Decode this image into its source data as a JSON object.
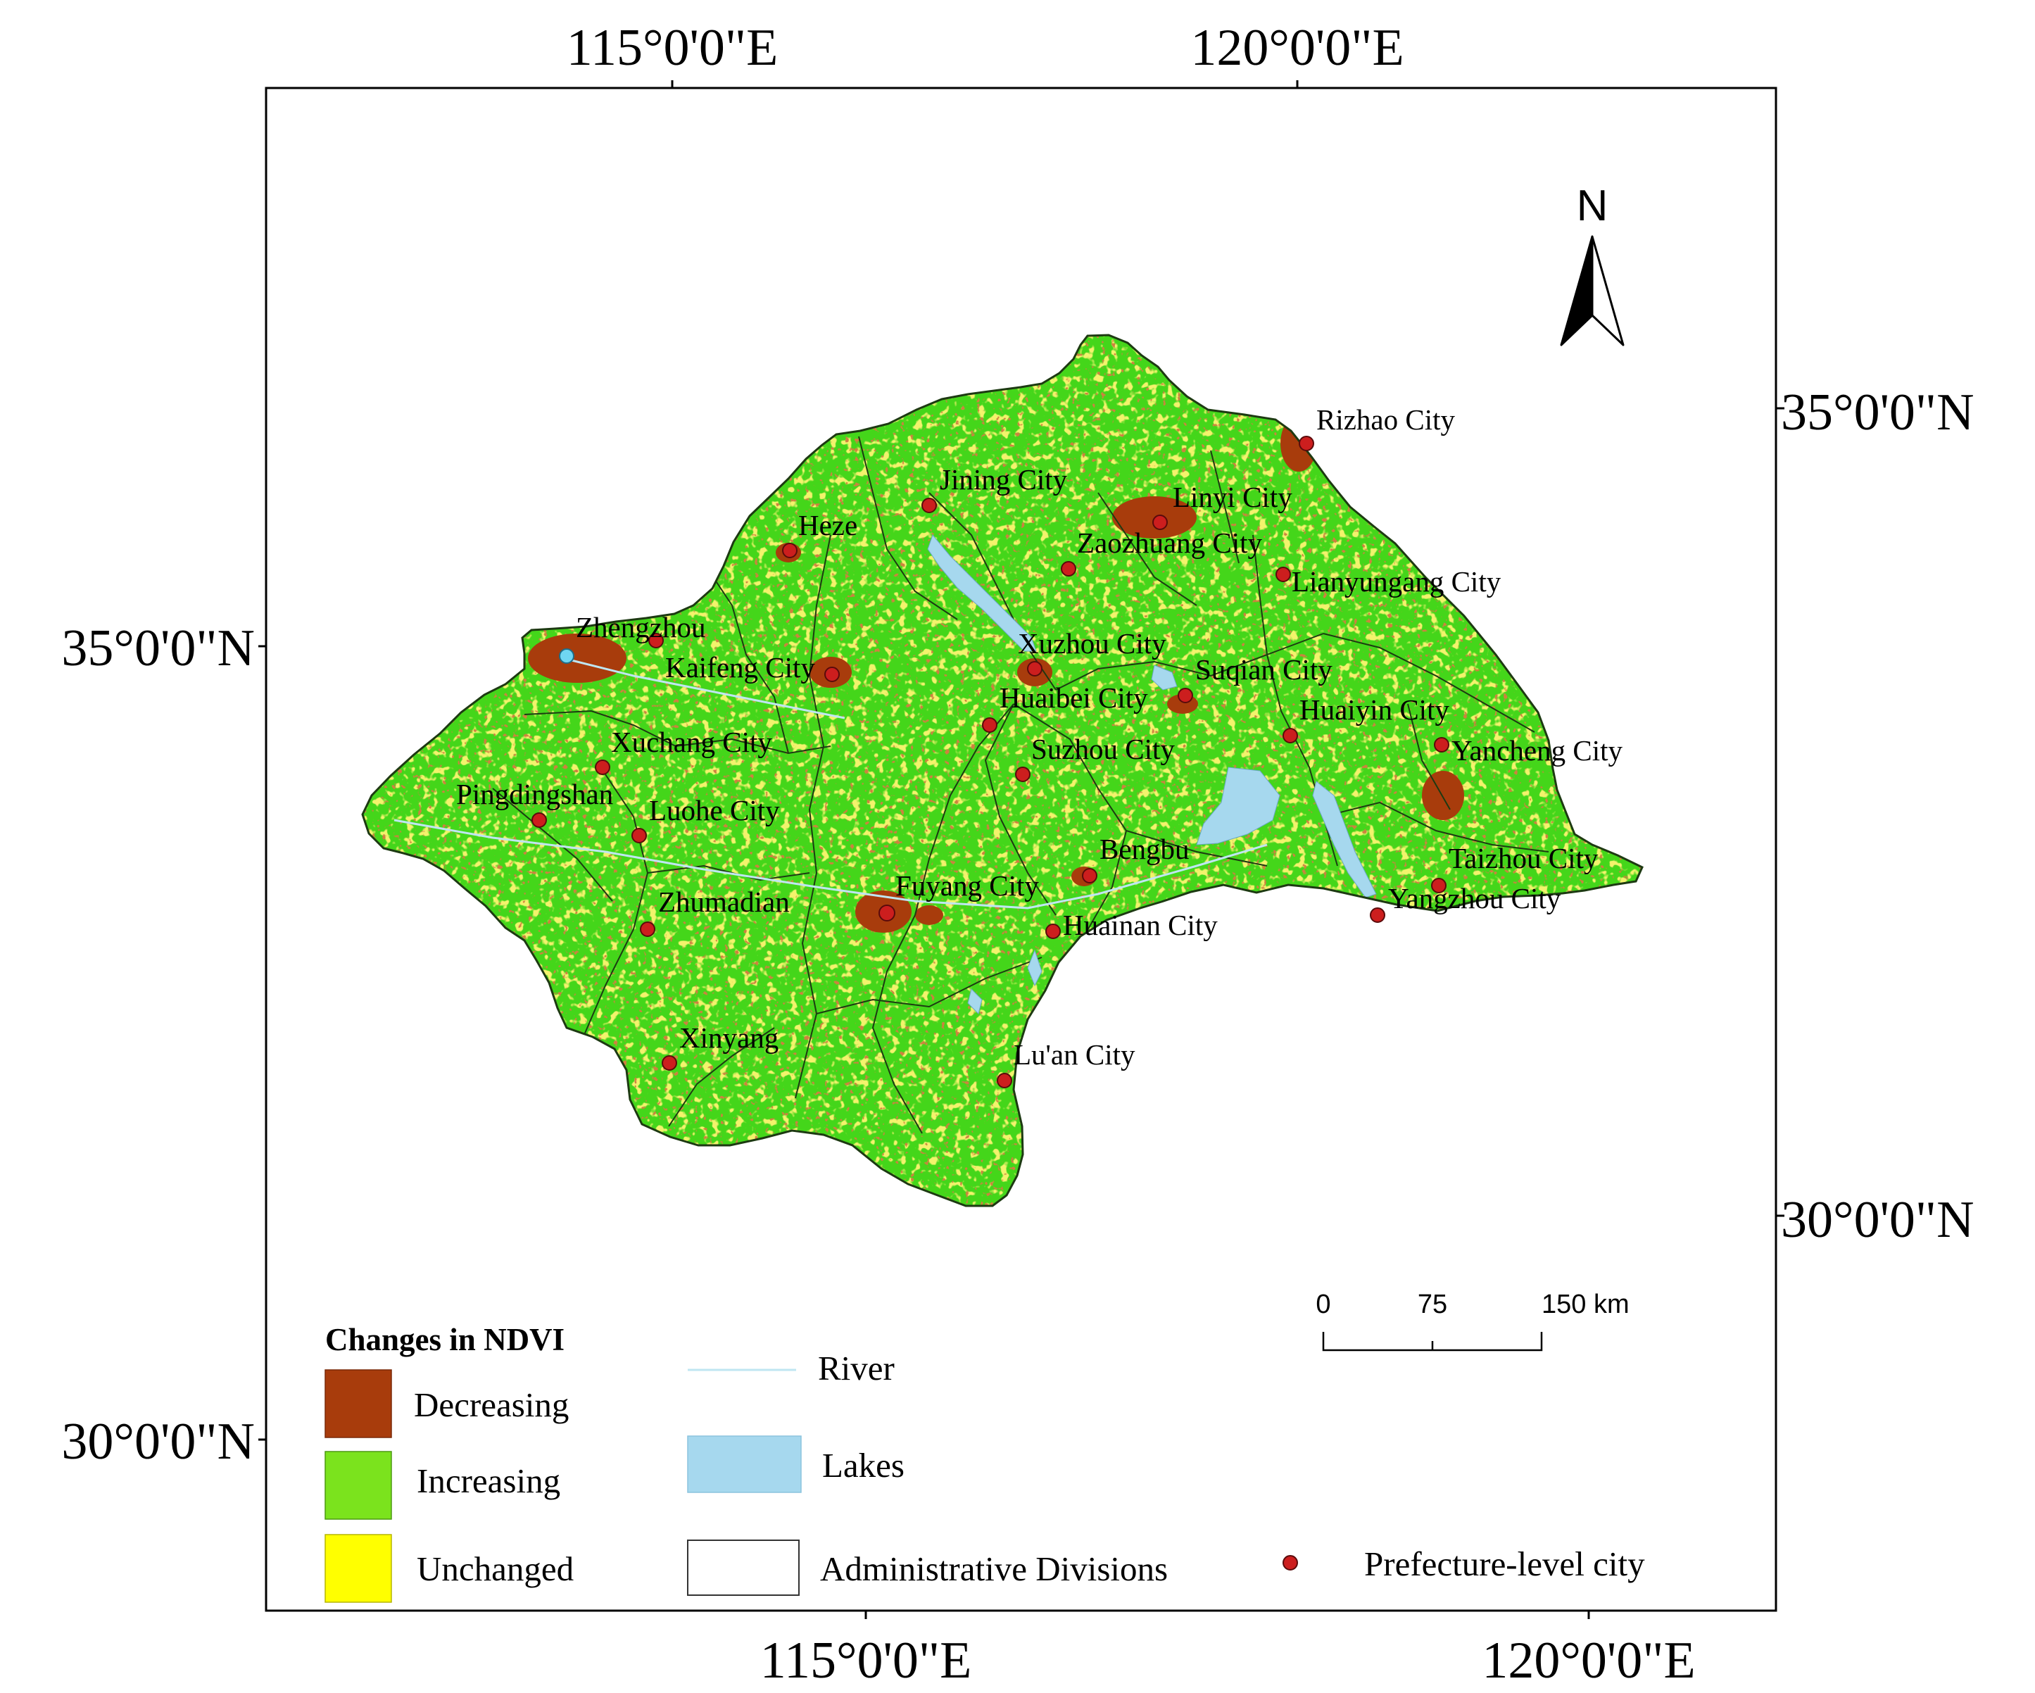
{
  "coordinates": {
    "top_left_lon": "115°0'0\"E",
    "top_right_lon": "120°0'0\"E",
    "bottom_left_lon": "115°0'0\"E",
    "bottom_right_lon": "120°0'0\"E",
    "left_upper_lat": "35°0'0\"N",
    "left_lower_lat": "30°0'0\"N",
    "right_upper_lat": "35°0'0\"N",
    "right_lower_lat": "30°0'0\"N"
  },
  "north_arrow": {
    "label": "N"
  },
  "scale_bar": {
    "ticks": [
      "0",
      "75",
      "150 km"
    ]
  },
  "cities": [
    {
      "name": "Rizhao City"
    },
    {
      "name": "Jining City"
    },
    {
      "name": "Linyi City"
    },
    {
      "name": "Heze"
    },
    {
      "name": "Zaozhuang City"
    },
    {
      "name": "Lianyungang City"
    },
    {
      "name": "Zhengzhou"
    },
    {
      "name": "Xuzhou City"
    },
    {
      "name": "Kaifeng City"
    },
    {
      "name": "Suqian City"
    },
    {
      "name": "Huaibei City"
    },
    {
      "name": "Huaiyin City"
    },
    {
      "name": "Xuchang City"
    },
    {
      "name": "Suzhou City"
    },
    {
      "name": "Yancheng City"
    },
    {
      "name": "Pingdingshan"
    },
    {
      "name": "Luohe City"
    },
    {
      "name": "Bengbu"
    },
    {
      "name": "Taizhou City"
    },
    {
      "name": "Fuyang City"
    },
    {
      "name": "Zhumadian"
    },
    {
      "name": "Yangzhou City"
    },
    {
      "name": "Huainan City"
    },
    {
      "name": "Xinyang"
    },
    {
      "name": "Lu'an City"
    }
  ],
  "legend": {
    "title": "Changes in NDVI",
    "decreasing": {
      "label": "Decreasing",
      "color": "#a83c0c"
    },
    "increasing": {
      "label": "Increasing",
      "color": "#7be31d"
    },
    "unchanged": {
      "label": "Unchanged",
      "color": "#ffff00"
    },
    "river": {
      "label": "River",
      "color": "#bfe6f2"
    },
    "lakes": {
      "label": "Lakes",
      "color": "#a6d8ee"
    },
    "admin": {
      "label": "Administrative Divisions"
    },
    "city": {
      "label": "Prefecture-level city",
      "color": "#cc1e1e"
    }
  },
  "colors": {
    "region_fill": "#44d61a",
    "region_green": "#55e31d",
    "boundary": "#1d3a12",
    "speckle_yellow": "#e2e832",
    "city_marker": "#cc1e1e"
  }
}
